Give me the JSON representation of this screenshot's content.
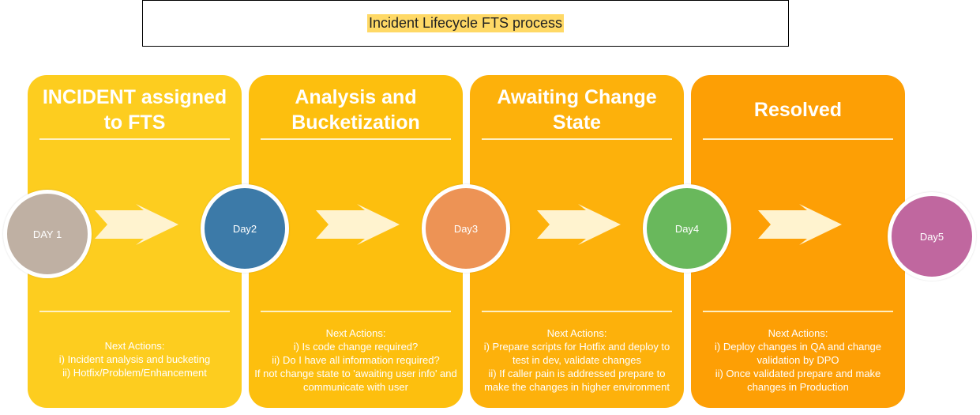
{
  "title": "Incident Lifecycle FTS process",
  "colors": {
    "title_highlight": "#ffd966",
    "panel1": "#fdcd1f",
    "panel2": "#fdbf0e",
    "panel3": "#fdb10b",
    "panel4": "#fd9f05",
    "arrow": "#fff3cf"
  },
  "stages": [
    {
      "title_lines": [
        "INCIDENT assigned",
        "to FTS"
      ],
      "actions_header": "Next Actions:",
      "actions": [
        "i) Incident analysis and bucketing",
        "ii) Hotfix/Problem/Enhancement"
      ]
    },
    {
      "title_lines": [
        "Analysis and",
        "Bucketization"
      ],
      "actions_header": "Next Actions:",
      "actions": [
        "i) Is code change required?",
        "ii) Do I have all information required?",
        "If not change state to 'awaiting user info' and",
        "communicate with user"
      ]
    },
    {
      "title_lines": [
        "Awaiting Change",
        "State"
      ],
      "actions_header": "Next Actions:",
      "actions": [
        "i) Prepare scripts for Hotfix and deploy to",
        "test in dev, validate changes",
        "ii) If caller pain is addressed prepare to",
        "make the changes in higher environment"
      ]
    },
    {
      "title_lines": [
        "Resolved"
      ],
      "actions_header": "Next Actions:",
      "actions": [
        "i) Deploy changes in QA and change",
        "validation by DPO",
        "ii) Once validated prepare and make",
        "changes in Production"
      ]
    }
  ],
  "days": [
    {
      "label": "DAY 1",
      "color": "#bfb0a3"
    },
    {
      "label": "Day2",
      "color": "#3c7aa8"
    },
    {
      "label": "Day3",
      "color": "#ed9355"
    },
    {
      "label": "Day4",
      "color": "#69b85c"
    },
    {
      "label": "Day5",
      "color": "#c0679f"
    }
  ]
}
